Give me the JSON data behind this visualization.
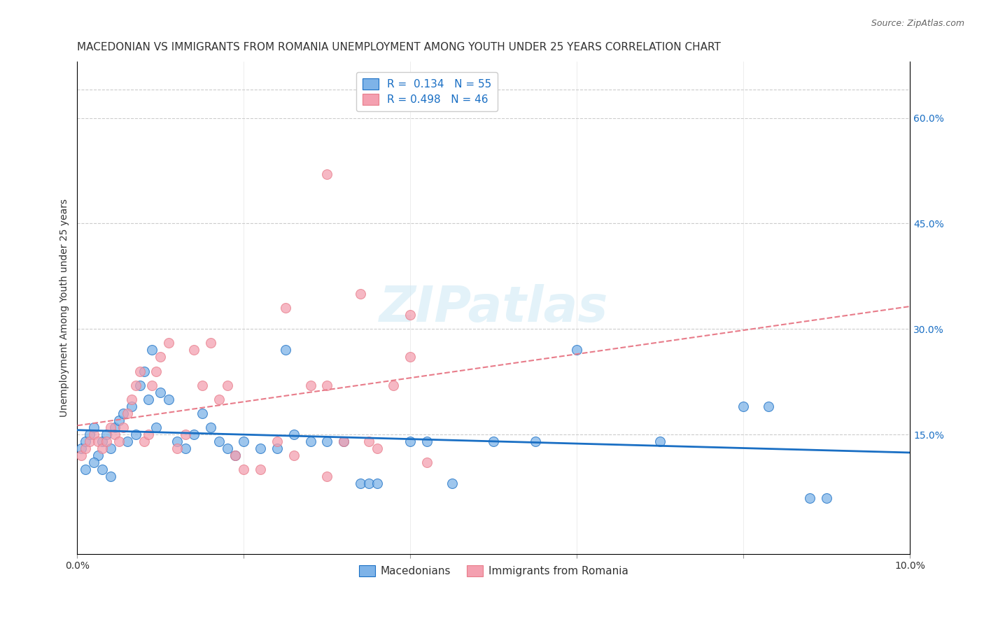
{
  "title": "MACEDONIAN VS IMMIGRANTS FROM ROMANIA UNEMPLOYMENT AMONG YOUTH UNDER 25 YEARS CORRELATION CHART",
  "source": "Source: ZipAtlas.com",
  "ylabel": "Unemployment Among Youth under 25 years",
  "xlim": [
    0.0,
    0.1
  ],
  "ylim": [
    -0.02,
    0.68
  ],
  "right_yticks": [
    0.15,
    0.3,
    0.45,
    0.6
  ],
  "right_yticklabels": [
    "15.0%",
    "30.0%",
    "45.0%",
    "60.0%"
  ],
  "grid_color": "#cccccc",
  "background_color": "#ffffff",
  "watermark": "ZIPatlas",
  "legend_R1": "R =  0.134",
  "legend_N1": "N = 55",
  "legend_R2": "R = 0.498",
  "legend_N2": "N = 46",
  "series1_color": "#7eb3e8",
  "series2_color": "#f4a0b0",
  "trendline1_color": "#1a6fc4",
  "trendline2_color": "#e87c8a",
  "label1": "Macedonians",
  "label2": "Immigrants from Romania",
  "macedonians_x": [
    0.0005,
    0.001,
    0.0015,
    0.002,
    0.0025,
    0.003,
    0.0035,
    0.004,
    0.0045,
    0.005,
    0.0055,
    0.006,
    0.0065,
    0.007,
    0.0075,
    0.008,
    0.0085,
    0.009,
    0.0095,
    0.01,
    0.011,
    0.012,
    0.013,
    0.014,
    0.015,
    0.016,
    0.017,
    0.018,
    0.019,
    0.02,
    0.022,
    0.024,
    0.025,
    0.026,
    0.028,
    0.03,
    0.032,
    0.034,
    0.035,
    0.036,
    0.04,
    0.042,
    0.045,
    0.05,
    0.055,
    0.06,
    0.07,
    0.08,
    0.083,
    0.088,
    0.09,
    0.001,
    0.002,
    0.003,
    0.004
  ],
  "macedonians_y": [
    0.13,
    0.14,
    0.15,
    0.16,
    0.12,
    0.14,
    0.15,
    0.13,
    0.16,
    0.17,
    0.18,
    0.14,
    0.19,
    0.15,
    0.22,
    0.24,
    0.2,
    0.27,
    0.16,
    0.21,
    0.2,
    0.14,
    0.13,
    0.15,
    0.18,
    0.16,
    0.14,
    0.13,
    0.12,
    0.14,
    0.13,
    0.13,
    0.27,
    0.15,
    0.14,
    0.14,
    0.14,
    0.08,
    0.08,
    0.08,
    0.14,
    0.14,
    0.08,
    0.14,
    0.14,
    0.27,
    0.14,
    0.19,
    0.19,
    0.06,
    0.06,
    0.1,
    0.11,
    0.1,
    0.09
  ],
  "romania_x": [
    0.0005,
    0.001,
    0.0015,
    0.002,
    0.0025,
    0.003,
    0.0035,
    0.004,
    0.0045,
    0.005,
    0.0055,
    0.006,
    0.0065,
    0.007,
    0.0075,
    0.008,
    0.0085,
    0.009,
    0.0095,
    0.01,
    0.011,
    0.012,
    0.013,
    0.014,
    0.015,
    0.016,
    0.017,
    0.018,
    0.019,
    0.02,
    0.022,
    0.024,
    0.026,
    0.028,
    0.03,
    0.032,
    0.034,
    0.036,
    0.038,
    0.04,
    0.025,
    0.03,
    0.03,
    0.035,
    0.04,
    0.042
  ],
  "romania_y": [
    0.12,
    0.13,
    0.14,
    0.15,
    0.14,
    0.13,
    0.14,
    0.16,
    0.15,
    0.14,
    0.16,
    0.18,
    0.2,
    0.22,
    0.24,
    0.14,
    0.15,
    0.22,
    0.24,
    0.26,
    0.28,
    0.13,
    0.15,
    0.27,
    0.22,
    0.28,
    0.2,
    0.22,
    0.12,
    0.1,
    0.1,
    0.14,
    0.12,
    0.22,
    0.22,
    0.14,
    0.35,
    0.13,
    0.22,
    0.26,
    0.33,
    0.52,
    0.09,
    0.14,
    0.32,
    0.11
  ],
  "title_fontsize": 11,
  "axis_label_fontsize": 10,
  "tick_fontsize": 10,
  "right_tick_color": "#1a6fc4",
  "marker_size": 10
}
